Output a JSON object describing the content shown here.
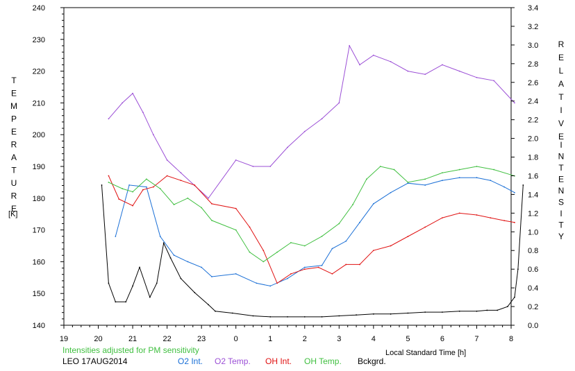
{
  "chart_data": {
    "type": "line",
    "x_axis": {
      "label": "Local Standard Time [h]",
      "ticks": [
        19,
        20,
        21,
        22,
        23,
        0,
        1,
        2,
        3,
        4,
        5,
        6,
        7,
        8
      ],
      "range_hours": [
        19,
        32
      ]
    },
    "y_left": {
      "label_letters": [
        "T",
        "E",
        "M",
        "P",
        "E",
        "R",
        "A",
        "T",
        "U",
        "R",
        "E"
      ],
      "unit": "[K]",
      "range": [
        140,
        240
      ],
      "ticks": [
        140,
        150,
        160,
        170,
        180,
        190,
        200,
        210,
        220,
        230,
        240
      ]
    },
    "y_right": {
      "label_letters_1": [
        "R",
        "E",
        "L",
        "A",
        "T",
        "I",
        "V",
        "E"
      ],
      "label_letters_2": [
        "I",
        "N",
        "T",
        "E",
        "N",
        "S",
        "I",
        "T",
        "Y"
      ],
      "range": [
        0,
        3.4
      ],
      "ticks": [
        "0.0",
        "0.2",
        "0.4",
        "0.6",
        "0.8",
        "1.0",
        "1.2",
        "1.4",
        "1.6",
        "1.8",
        "2.0",
        "2.2",
        "2.4",
        "2.6",
        "2.8",
        "3.0",
        "3.2",
        "3.4"
      ]
    },
    "note": "Intensities adjusted for PM sensitivity",
    "station": "LEO 17AUG2014",
    "series": [
      {
        "name": "O2 Int.",
        "color": "#1a6fd6",
        "axis": "right",
        "x": [
          20.5,
          20.9,
          21.4,
          21.8,
          22.2,
          22.6,
          23.0,
          23.3,
          24.0,
          24.6,
          25.0,
          25.5,
          26.0,
          26.5,
          26.8,
          27.2,
          27.6,
          28.0,
          28.5,
          29.0,
          29.5,
          30.0,
          30.5,
          31.0,
          31.4,
          31.8,
          32.1
        ],
        "y": [
          0.95,
          1.5,
          1.48,
          0.95,
          0.75,
          0.68,
          0.62,
          0.52,
          0.55,
          0.45,
          0.42,
          0.5,
          0.62,
          0.64,
          0.82,
          0.9,
          1.1,
          1.3,
          1.42,
          1.52,
          1.5,
          1.55,
          1.58,
          1.58,
          1.55,
          1.48,
          1.42
        ]
      },
      {
        "name": "O2 Temp.",
        "color": "#9b4fd6",
        "axis": "left",
        "x": [
          20.3,
          20.7,
          21.0,
          21.3,
          21.6,
          22.0,
          22.4,
          22.8,
          23.2,
          24.0,
          24.5,
          25.0,
          25.5,
          26.0,
          26.5,
          27.0,
          27.3,
          27.6,
          28.0,
          28.5,
          29.0,
          29.5,
          30.0,
          30.5,
          31.0,
          31.5,
          32.1
        ],
        "y": [
          205,
          210,
          213,
          207,
          200,
          192,
          188,
          184,
          180,
          192,
          190,
          190,
          196,
          201,
          205,
          210,
          228,
          222,
          225,
          223,
          220,
          219,
          222,
          220,
          218,
          217,
          210
        ]
      },
      {
        "name": "OH Int.",
        "color": "#e01010",
        "axis": "right",
        "x": [
          20.3,
          20.6,
          21.0,
          21.3,
          21.6,
          22.0,
          22.4,
          22.8,
          23.3,
          24.0,
          24.4,
          24.8,
          25.2,
          25.6,
          26.0,
          26.4,
          26.8,
          27.2,
          27.6,
          28.0,
          28.5,
          29.0,
          29.5,
          30.0,
          30.5,
          31.0,
          31.4,
          31.8,
          32.1
        ],
        "y": [
          1.6,
          1.35,
          1.28,
          1.45,
          1.48,
          1.6,
          1.55,
          1.5,
          1.3,
          1.25,
          1.05,
          0.8,
          0.45,
          0.55,
          0.6,
          0.62,
          0.55,
          0.65,
          0.65,
          0.8,
          0.85,
          0.95,
          1.05,
          1.15,
          1.2,
          1.18,
          1.15,
          1.12,
          1.1
        ]
      },
      {
        "name": "OH Temp.",
        "color": "#3fbf3f",
        "axis": "left",
        "x": [
          20.3,
          20.7,
          21.0,
          21.4,
          21.8,
          22.2,
          22.6,
          23.0,
          23.3,
          24.0,
          24.4,
          24.8,
          25.2,
          25.6,
          26.0,
          26.5,
          27.0,
          27.4,
          27.8,
          28.2,
          28.6,
          29.0,
          29.5,
          30.0,
          30.5,
          31.0,
          31.5,
          32.1
        ],
        "y": [
          185,
          183,
          182,
          186,
          183,
          178,
          180,
          177,
          173,
          170,
          163,
          160,
          163,
          166,
          165,
          168,
          172,
          178,
          186,
          190,
          189,
          185,
          186,
          188,
          189,
          190,
          189,
          187
        ]
      },
      {
        "name": "Bckgrd.",
        "color": "#000000",
        "axis": "right",
        "x": [
          20.1,
          20.3,
          20.5,
          20.8,
          21.0,
          21.2,
          21.5,
          21.7,
          21.9,
          22.1,
          22.4,
          22.8,
          23.2,
          23.4,
          23.9,
          24.5,
          25.0,
          25.5,
          26.0,
          26.5,
          27.0,
          27.5,
          28.0,
          28.5,
          29.0,
          29.5,
          30.0,
          30.5,
          31.0,
          31.3,
          31.6,
          31.9,
          32.1,
          32.2,
          32.35
        ],
        "y": [
          1.5,
          0.45,
          0.25,
          0.25,
          0.42,
          0.62,
          0.3,
          0.45,
          0.88,
          0.72,
          0.5,
          0.35,
          0.22,
          0.15,
          0.13,
          0.1,
          0.09,
          0.09,
          0.09,
          0.09,
          0.1,
          0.11,
          0.12,
          0.12,
          0.13,
          0.14,
          0.14,
          0.15,
          0.15,
          0.16,
          0.16,
          0.2,
          0.3,
          0.6,
          1.5
        ]
      }
    ]
  }
}
